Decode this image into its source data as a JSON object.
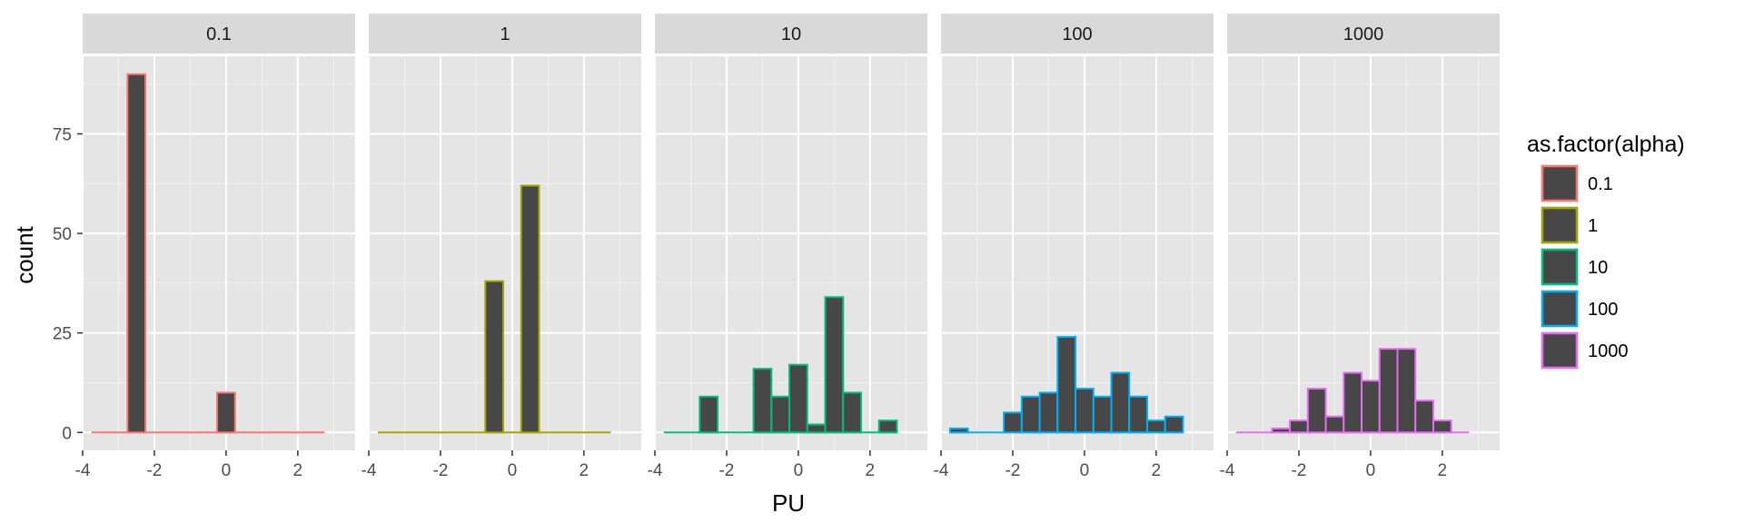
{
  "chart_data": {
    "type": "bar",
    "subtype": "faceted-histogram",
    "xlabel": "PU",
    "ylabel": "count",
    "xlim": [
      -4,
      3.6
    ],
    "ylim": [
      -4.5,
      94.5
    ],
    "x_ticks": [
      -4,
      -2,
      0,
      2
    ],
    "y_ticks": [
      0,
      25,
      50,
      75
    ],
    "bin_width": 0.5,
    "grid": true,
    "legend_position": "right",
    "legend_title": "as.factor(alpha)",
    "fill_color": "#474747",
    "panel_background": "#e5e5e5",
    "strip_background": "#d9d9d9",
    "facets": [
      {
        "label": "0.1",
        "color": "#F8766D",
        "baseline": [
          -3.75,
          2.75
        ],
        "x": [
          -2.5,
          0.0
        ],
        "values": [
          90,
          10
        ]
      },
      {
        "label": "1",
        "color": "#A3A500",
        "baseline": [
          -3.75,
          2.75
        ],
        "x": [
          -0.5,
          0.5
        ],
        "values": [
          38,
          62
        ]
      },
      {
        "label": "10",
        "color": "#00BF7D",
        "baseline": [
          -3.75,
          2.75
        ],
        "x": [
          -2.5,
          -2.0,
          -1.5,
          -1.0,
          -0.5,
          0.0,
          0.5,
          1.0,
          1.5,
          2.0,
          2.5
        ],
        "values": [
          9,
          0,
          0,
          16,
          9,
          17,
          2,
          34,
          10,
          0,
          3
        ]
      },
      {
        "label": "100",
        "color": "#00B0F6",
        "baseline": [
          -3.75,
          2.75
        ],
        "x": [
          -3.5,
          -3.0,
          -2.5,
          -2.0,
          -1.5,
          -1.0,
          -0.5,
          0.0,
          0.5,
          1.0,
          1.5,
          2.0,
          2.5
        ],
        "values": [
          1,
          0,
          0,
          5,
          9,
          10,
          24,
          11,
          9,
          15,
          9,
          3,
          4
        ]
      },
      {
        "label": "1000",
        "color": "#E76BF3",
        "baseline": [
          -3.75,
          2.75
        ],
        "x": [
          -2.5,
          -2.0,
          -1.5,
          -1.0,
          -0.5,
          0.0,
          0.5,
          1.0,
          1.5,
          2.0
        ],
        "values": [
          1,
          3,
          11,
          4,
          15,
          13,
          21,
          21,
          8,
          3
        ]
      }
    ]
  }
}
